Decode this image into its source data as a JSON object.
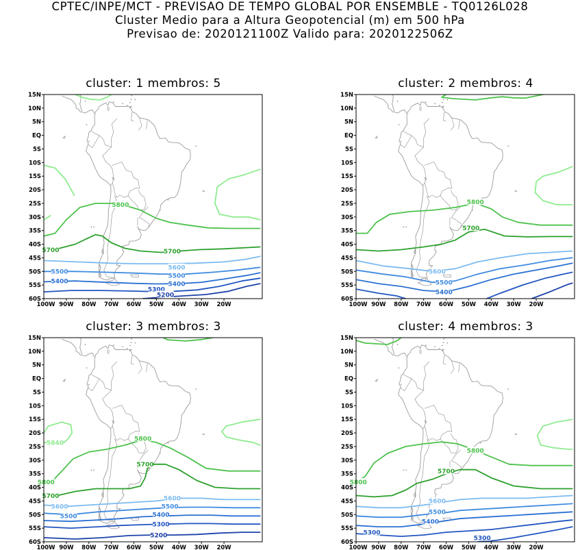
{
  "header": {
    "line1": "CPTEC/INPE/MCT - PREVISAO DE TEMPO GLOBAL POR ENSEMBLE - TQ0126L028",
    "line2": "Cluster Medio para a Altura Geopotencial (m) em 500 hPa",
    "line3": "Previsao de: 2020121100Z   Valido para: 2020122506Z"
  },
  "axes": {
    "lat_labels": [
      "15N",
      "10N",
      "5N",
      "EQ",
      "5S",
      "10S",
      "15S",
      "20S",
      "25S",
      "30S",
      "35S",
      "40S",
      "45S",
      "50S",
      "55S",
      "60S"
    ],
    "lon_labels": [
      "100W",
      "90W",
      "80W",
      "70W",
      "60W",
      "50W",
      "40W",
      "30W",
      "20W"
    ]
  },
  "colors": {
    "z5200": "#1c40a8",
    "z5300": "#2155c0",
    "z5400": "#2a70d2",
    "z5500": "#3f8be0",
    "z5600": "#7bbbf0",
    "z5700": "#2ca02c",
    "z5800": "#4cc24c",
    "z5840": "#8eec8e",
    "map": "#9a9a9a"
  },
  "panels": [
    {
      "title": "cluster: 1   membros: 5",
      "labels": [
        {
          "text": "5800",
          "lon": -66,
          "lat": -25.5,
          "level": "z5800"
        },
        {
          "text": "5700",
          "lon": -97,
          "lat": -42,
          "level": "z5700"
        },
        {
          "text": "5700",
          "lon": -43,
          "lat": -42.5,
          "level": "z5700"
        },
        {
          "text": "5600",
          "lon": -41,
          "lat": -48.5,
          "level": "z5600"
        },
        {
          "text": "5500",
          "lon": -93,
          "lat": -50,
          "level": "z5500"
        },
        {
          "text": "5500",
          "lon": -41,
          "lat": -51.5,
          "level": "z5500"
        },
        {
          "text": "5400",
          "lon": -93,
          "lat": -53.5,
          "level": "z5400"
        },
        {
          "text": "5400",
          "lon": -41,
          "lat": -54.5,
          "level": "z5400"
        },
        {
          "text": "5300",
          "lon": -50,
          "lat": -56.5,
          "level": "z5300"
        },
        {
          "text": "5200",
          "lon": -46,
          "lat": -58.5,
          "level": "z5200"
        }
      ]
    },
    {
      "title": "cluster: 2   membros: 4",
      "labels": [
        {
          "text": "5800",
          "lon": -47,
          "lat": -24.5,
          "level": "z5800"
        },
        {
          "text": "5700",
          "lon": -49,
          "lat": -34,
          "level": "z5700"
        },
        {
          "text": "5600",
          "lon": -64,
          "lat": -50,
          "level": "z5600"
        },
        {
          "text": "5500",
          "lon": -61,
          "lat": -54,
          "level": "z5500"
        },
        {
          "text": "5400",
          "lon": -61,
          "lat": -57.5,
          "level": "z5400"
        }
      ]
    },
    {
      "title": "cluster: 3   membros: 3",
      "labels": [
        {
          "text": "5840",
          "lon": -95,
          "lat": -23.5,
          "level": "z5840"
        },
        {
          "text": "5800",
          "lon": -56,
          "lat": -22,
          "level": "z5800"
        },
        {
          "text": "5800",
          "lon": -99,
          "lat": -38,
          "level": "z5800"
        },
        {
          "text": "5700",
          "lon": -55,
          "lat": -31.5,
          "level": "z5700"
        },
        {
          "text": "5700",
          "lon": -97,
          "lat": -43,
          "level": "z5700"
        },
        {
          "text": "5600",
          "lon": -43,
          "lat": -44,
          "level": "z5600"
        },
        {
          "text": "5600",
          "lon": -93,
          "lat": -47,
          "level": "z5600"
        },
        {
          "text": "5500",
          "lon": -44,
          "lat": -47,
          "level": "z5500"
        },
        {
          "text": "5500",
          "lon": -89,
          "lat": -50.5,
          "level": "z5500"
        },
        {
          "text": "5400",
          "lon": -48,
          "lat": -50,
          "level": "z5400"
        },
        {
          "text": "5300",
          "lon": -48,
          "lat": -53.5,
          "level": "z5300"
        },
        {
          "text": "5200",
          "lon": -49,
          "lat": -57.5,
          "level": "z5200"
        }
      ]
    },
    {
      "title": "cluster: 4   membros: 3",
      "labels": [
        {
          "text": "5800",
          "lon": -47,
          "lat": -26.5,
          "level": "z5800"
        },
        {
          "text": "5800",
          "lon": -99,
          "lat": -38,
          "level": "z5800"
        },
        {
          "text": "5700",
          "lon": -60,
          "lat": -34,
          "level": "z5700"
        },
        {
          "text": "5600",
          "lon": -64,
          "lat": -45,
          "level": "z5600"
        },
        {
          "text": "5500",
          "lon": -64,
          "lat": -49,
          "level": "z5500"
        },
        {
          "text": "5400",
          "lon": -67,
          "lat": -52.5,
          "level": "z5400"
        },
        {
          "text": "5300",
          "lon": -93,
          "lat": -56.5,
          "level": "z5300"
        },
        {
          "text": "5300",
          "lon": -44,
          "lat": -58.5,
          "level": "z5300"
        }
      ]
    }
  ]
}
